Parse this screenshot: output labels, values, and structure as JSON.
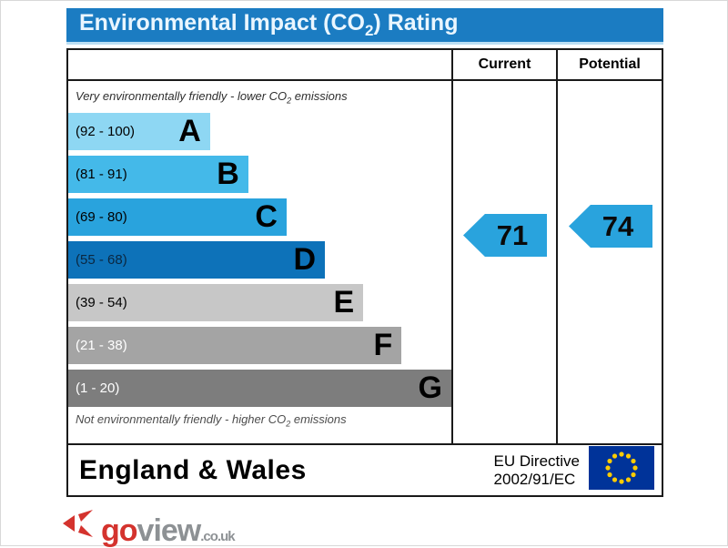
{
  "title": {
    "prefix": "Environmental Impact (CO",
    "sub": "2",
    "suffix": ") Rating"
  },
  "header": {
    "current": "Current",
    "potential": "Potential"
  },
  "captions": {
    "top": {
      "prefix": "Very environmentally friendly - lower CO",
      "sub": "2",
      "suffix": " emissions"
    },
    "bottom": {
      "prefix": "Not environmentally friendly - higher CO",
      "sub": "2",
      "suffix": " emissions"
    }
  },
  "chart_data": {
    "type": "bar",
    "title": "Environmental Impact (CO2) Rating",
    "top_caption": "Very environmentally friendly - lower CO2 emissions",
    "bottom_caption": "Not environmentally friendly - higher CO2 emissions",
    "bands": [
      {
        "letter": "A",
        "label": "(92 - 100)",
        "range_min": 92,
        "range_max": 100,
        "color": "#8ed7f3",
        "label_color": "#000000",
        "width_pct": 37
      },
      {
        "letter": "B",
        "label": "(81 - 91)",
        "range_min": 81,
        "range_max": 91,
        "color": "#44b9e9",
        "label_color": "#000000",
        "width_pct": 47
      },
      {
        "letter": "C",
        "label": "(69 - 80)",
        "range_min": 69,
        "range_max": 80,
        "color": "#29a3dd",
        "label_color": "#000000",
        "width_pct": 57
      },
      {
        "letter": "D",
        "label": "(55 - 68)",
        "range_min": 55,
        "range_max": 68,
        "color": "#0d72b9",
        "label_color": "#0b2740",
        "width_pct": 67
      },
      {
        "letter": "E",
        "label": "(39 - 54)",
        "range_min": 39,
        "range_max": 54,
        "color": "#c7c7c7",
        "label_color": "#000000",
        "width_pct": 77
      },
      {
        "letter": "F",
        "label": "(21 - 38)",
        "range_min": 21,
        "range_max": 38,
        "color": "#a4a4a4",
        "label_color": "#ffffff",
        "width_pct": 87
      },
      {
        "letter": "G",
        "label": "(1 - 20)",
        "range_min": 1,
        "range_max": 20,
        "color": "#7d7d7d",
        "label_color": "#ffffff",
        "width_pct": 100
      }
    ],
    "current": {
      "label": "Current",
      "value": "71",
      "band": "C"
    },
    "potential": {
      "label": "Potential",
      "value": "74",
      "band": "C"
    },
    "arrow_color": "#29a3dd",
    "legend_position": "none",
    "grid": false
  },
  "footer": {
    "region": "England & Wales",
    "directive_line1": "EU Directive",
    "directive_line2": "2002/91/EC",
    "eu_flag_blue": "#003399",
    "eu_flag_star": "#ffcc00"
  },
  "logo": {
    "part1": "go",
    "part2": "view",
    "part3": ".co.uk",
    "red": "#d4332e",
    "gray": "#8d9194"
  },
  "colors": {
    "title_bar": "#1b7cc2",
    "border": "#1a1a1a"
  }
}
